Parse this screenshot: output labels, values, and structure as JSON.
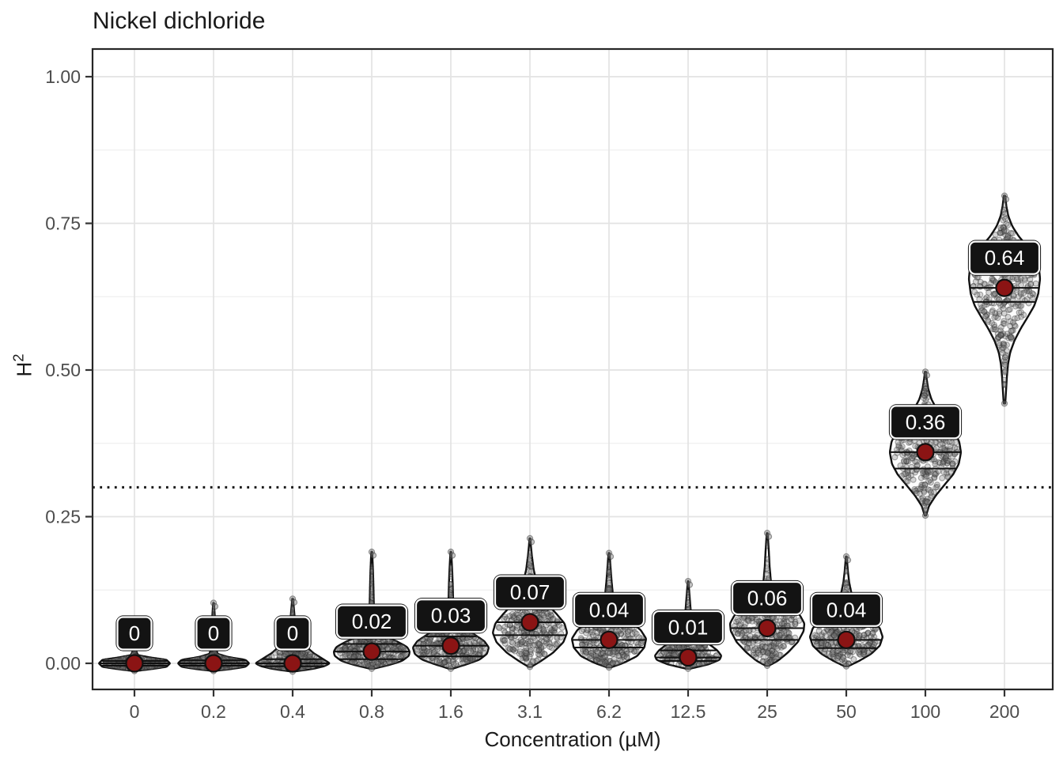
{
  "chart_data": {
    "type": "violin",
    "title": "Nickel dichloride",
    "xlabel": "Concentration (µM)",
    "ylabel_base": "H",
    "ylabel_exponent": "2",
    "ylim": [
      -0.045,
      1.045
    ],
    "grid": "on",
    "legend": "none",
    "y_ticks": [
      {
        "value": 0.0,
        "label": "0.00"
      },
      {
        "value": 0.25,
        "label": "0.25"
      },
      {
        "value": 0.5,
        "label": "0.50"
      },
      {
        "value": 0.75,
        "label": "0.75"
      },
      {
        "value": 1.0,
        "label": "1.00"
      }
    ],
    "y_minor_ticks": [
      0.125,
      0.375,
      0.625,
      0.875
    ],
    "threshold_line": {
      "value": 0.3,
      "style": "dotted",
      "color": "#161616"
    },
    "categories": [
      "0",
      "0.2",
      "0.4",
      "0.8",
      "1.6",
      "3.1",
      "6.2",
      "12.5",
      "25",
      "50",
      "100",
      "200"
    ],
    "medians": [
      0,
      0,
      0,
      0.02,
      0.03,
      0.07,
      0.04,
      0.01,
      0.06,
      0.04,
      0.36,
      0.64
    ],
    "median_labels": [
      "0",
      "0",
      "0",
      "0.02",
      "0.03",
      "0.07",
      "0.04",
      "0.01",
      "0.06",
      "0.04",
      "0.36",
      "0.64"
    ],
    "violins": [
      {
        "category": "0",
        "label": "0",
        "median": 0,
        "q1": -0.004,
        "q3": 0.004,
        "halfwidth": 45,
        "points_n": 320,
        "profile": [
          [
            -0.013,
            0.03
          ],
          [
            -0.01,
            0.45
          ],
          [
            -0.006,
            0.9
          ],
          [
            0,
            1
          ],
          [
            0.006,
            0.9
          ],
          [
            0.01,
            0.45
          ],
          [
            0.014,
            0.1
          ],
          [
            0.02,
            0.055
          ],
          [
            0.03,
            0.045
          ],
          [
            0.042,
            0.04
          ],
          [
            0.055,
            0.025
          ],
          [
            0.062,
            0.012
          ]
        ]
      },
      {
        "category": "0.2",
        "label": "0",
        "median": 0,
        "q1": -0.004,
        "q3": 0.005,
        "halfwidth": 45,
        "points_n": 320,
        "profile": [
          [
            -0.013,
            0.03
          ],
          [
            -0.01,
            0.45
          ],
          [
            -0.006,
            0.9
          ],
          [
            0,
            1
          ],
          [
            0.006,
            0.9
          ],
          [
            0.011,
            0.4
          ],
          [
            0.016,
            0.12
          ],
          [
            0.024,
            0.07
          ],
          [
            0.04,
            0.055
          ],
          [
            0.06,
            0.045
          ],
          [
            0.08,
            0.035
          ],
          [
            0.095,
            0.02
          ],
          [
            0.103,
            0.01
          ]
        ]
      },
      {
        "category": "0.4",
        "label": "0",
        "median": 0,
        "q1": -0.005,
        "q3": 0.007,
        "halfwidth": 47,
        "points_n": 330,
        "profile": [
          [
            -0.014,
            0.03
          ],
          [
            -0.01,
            0.5
          ],
          [
            -0.005,
            0.85
          ],
          [
            0,
            1
          ],
          [
            0.008,
            0.8
          ],
          [
            0.018,
            0.55
          ],
          [
            0.028,
            0.38
          ],
          [
            0.04,
            0.22
          ],
          [
            0.055,
            0.12
          ],
          [
            0.07,
            0.07
          ],
          [
            0.085,
            0.045
          ],
          [
            0.1,
            0.025
          ],
          [
            0.11,
            0.012
          ]
        ]
      },
      {
        "category": "0.8",
        "label": "0.02",
        "median": 0.02,
        "q1": 0.007,
        "q3": 0.033,
        "halfwidth": 48,
        "points_n": 330,
        "profile": [
          [
            -0.009,
            0.05
          ],
          [
            -0.003,
            0.45
          ],
          [
            0.004,
            0.8
          ],
          [
            0.013,
            0.98
          ],
          [
            0.02,
            1
          ],
          [
            0.028,
            0.93
          ],
          [
            0.037,
            0.68
          ],
          [
            0.046,
            0.33
          ],
          [
            0.058,
            0.13
          ],
          [
            0.075,
            0.075
          ],
          [
            0.1,
            0.055
          ],
          [
            0.13,
            0.045
          ],
          [
            0.155,
            0.035
          ],
          [
            0.175,
            0.022
          ],
          [
            0.19,
            0.01
          ]
        ]
      },
      {
        "category": "1.6",
        "label": "0.03",
        "median": 0.03,
        "q1": 0.012,
        "q3": 0.046,
        "halfwidth": 48,
        "points_n": 330,
        "profile": [
          [
            -0.009,
            0.05
          ],
          [
            -0.002,
            0.4
          ],
          [
            0.006,
            0.75
          ],
          [
            0.016,
            0.95
          ],
          [
            0.027,
            1
          ],
          [
            0.038,
            0.88
          ],
          [
            0.05,
            0.6
          ],
          [
            0.062,
            0.3
          ],
          [
            0.075,
            0.14
          ],
          [
            0.09,
            0.085
          ],
          [
            0.11,
            0.06
          ],
          [
            0.135,
            0.05
          ],
          [
            0.16,
            0.035
          ],
          [
            0.178,
            0.02
          ],
          [
            0.19,
            0.01
          ]
        ]
      },
      {
        "category": "3.1",
        "label": "0.07",
        "median": 0.07,
        "q1": 0.048,
        "q3": 0.092,
        "halfwidth": 47,
        "points_n": 340,
        "profile": [
          [
            -0.006,
            0.04
          ],
          [
            0.004,
            0.3
          ],
          [
            0.018,
            0.62
          ],
          [
            0.036,
            0.9
          ],
          [
            0.052,
            1
          ],
          [
            0.068,
            0.93
          ],
          [
            0.084,
            0.72
          ],
          [
            0.1,
            0.48
          ],
          [
            0.118,
            0.3
          ],
          [
            0.138,
            0.18
          ],
          [
            0.16,
            0.1
          ],
          [
            0.185,
            0.05
          ],
          [
            0.205,
            0.02
          ],
          [
            0.213,
            0.01
          ]
        ]
      },
      {
        "category": "6.2",
        "label": "0.04",
        "median": 0.04,
        "q1": 0.027,
        "q3": 0.062,
        "halfwidth": 47,
        "points_n": 330,
        "profile": [
          [
            -0.007,
            0.05
          ],
          [
            0.001,
            0.4
          ],
          [
            0.012,
            0.75
          ],
          [
            0.027,
            0.95
          ],
          [
            0.042,
            1
          ],
          [
            0.057,
            0.85
          ],
          [
            0.072,
            0.55
          ],
          [
            0.087,
            0.3
          ],
          [
            0.103,
            0.16
          ],
          [
            0.12,
            0.1
          ],
          [
            0.14,
            0.07
          ],
          [
            0.16,
            0.045
          ],
          [
            0.178,
            0.025
          ],
          [
            0.188,
            0.012
          ]
        ]
      },
      {
        "category": "12.5",
        "label": "0.01",
        "median": 0.01,
        "q1": 0.004,
        "q3": 0.022,
        "halfwidth": 42,
        "points_n": 260,
        "profile": [
          [
            -0.009,
            0.07
          ],
          [
            -0.002,
            0.6
          ],
          [
            0.006,
            0.95
          ],
          [
            0.013,
            1
          ],
          [
            0.022,
            0.88
          ],
          [
            0.032,
            0.65
          ],
          [
            0.043,
            0.4
          ],
          [
            0.055,
            0.22
          ],
          [
            0.068,
            0.13
          ],
          [
            0.082,
            0.09
          ],
          [
            0.1,
            0.065
          ],
          [
            0.118,
            0.04
          ],
          [
            0.132,
            0.02
          ],
          [
            0.14,
            0.01
          ]
        ]
      },
      {
        "category": "25",
        "label": "0.06",
        "median": 0.06,
        "q1": 0.04,
        "q3": 0.087,
        "halfwidth": 47,
        "points_n": 330,
        "profile": [
          [
            -0.004,
            0.04
          ],
          [
            0.004,
            0.28
          ],
          [
            0.018,
            0.55
          ],
          [
            0.036,
            0.82
          ],
          [
            0.055,
            0.98
          ],
          [
            0.068,
            1
          ],
          [
            0.082,
            0.88
          ],
          [
            0.095,
            0.6
          ],
          [
            0.108,
            0.33
          ],
          [
            0.122,
            0.17
          ],
          [
            0.14,
            0.1
          ],
          [
            0.165,
            0.065
          ],
          [
            0.19,
            0.045
          ],
          [
            0.21,
            0.025
          ],
          [
            0.222,
            0.012
          ]
        ]
      },
      {
        "category": "50",
        "label": "0.04",
        "median": 0.04,
        "q1": 0.026,
        "q3": 0.062,
        "halfwidth": 46,
        "points_n": 320,
        "profile": [
          [
            -0.005,
            0.05
          ],
          [
            0.004,
            0.35
          ],
          [
            0.016,
            0.68
          ],
          [
            0.03,
            0.92
          ],
          [
            0.045,
            1
          ],
          [
            0.06,
            0.92
          ],
          [
            0.075,
            0.7
          ],
          [
            0.09,
            0.45
          ],
          [
            0.105,
            0.25
          ],
          [
            0.12,
            0.14
          ],
          [
            0.138,
            0.08
          ],
          [
            0.156,
            0.045
          ],
          [
            0.172,
            0.025
          ],
          [
            0.182,
            0.012
          ]
        ]
      },
      {
        "category": "100",
        "label": "0.36",
        "median": 0.36,
        "q1": 0.332,
        "q3": 0.386,
        "halfwidth": 45,
        "points_n": 330,
        "profile": [
          [
            0.252,
            0.02
          ],
          [
            0.268,
            0.1
          ],
          [
            0.285,
            0.28
          ],
          [
            0.303,
            0.52
          ],
          [
            0.322,
            0.78
          ],
          [
            0.34,
            0.94
          ],
          [
            0.36,
            1
          ],
          [
            0.378,
            0.95
          ],
          [
            0.396,
            0.8
          ],
          [
            0.414,
            0.56
          ],
          [
            0.432,
            0.33
          ],
          [
            0.45,
            0.17
          ],
          [
            0.468,
            0.08
          ],
          [
            0.485,
            0.035
          ],
          [
            0.497,
            0.015
          ]
        ]
      },
      {
        "category": "200",
        "label": "0.64",
        "median": 0.64,
        "q1": 0.616,
        "q3": 0.667,
        "halfwidth": 45,
        "points_n": 340,
        "profile": [
          [
            0.443,
            0.02
          ],
          [
            0.455,
            0.035
          ],
          [
            0.47,
            0.05
          ],
          [
            0.49,
            0.07
          ],
          [
            0.51,
            0.1
          ],
          [
            0.53,
            0.16
          ],
          [
            0.55,
            0.28
          ],
          [
            0.57,
            0.45
          ],
          [
            0.59,
            0.65
          ],
          [
            0.61,
            0.84
          ],
          [
            0.63,
            0.95
          ],
          [
            0.655,
            1
          ],
          [
            0.675,
            0.97
          ],
          [
            0.695,
            0.85
          ],
          [
            0.712,
            0.62
          ],
          [
            0.728,
            0.4
          ],
          [
            0.745,
            0.22
          ],
          [
            0.762,
            0.11
          ],
          [
            0.78,
            0.05
          ],
          [
            0.797,
            0.02
          ]
        ]
      }
    ],
    "colors": {
      "median_dot": "#8B1414",
      "violin_outline": "#111111",
      "violin_fill": "#FCFCFC",
      "jitter_dot": "#787878",
      "jitter_dot_edge": "#2B2B2B",
      "label_box_bg": "#131313",
      "label_box_border": "#FFFFFF",
      "label_text": "#FFFFFF",
      "grid_major": "#E3E3E3",
      "grid_minor": "#EFEFEF",
      "panel_border": "#262626",
      "axis_text": "#4D4D4D",
      "tick_mark": "#333333",
      "title_text": "#1A1A1A"
    }
  }
}
